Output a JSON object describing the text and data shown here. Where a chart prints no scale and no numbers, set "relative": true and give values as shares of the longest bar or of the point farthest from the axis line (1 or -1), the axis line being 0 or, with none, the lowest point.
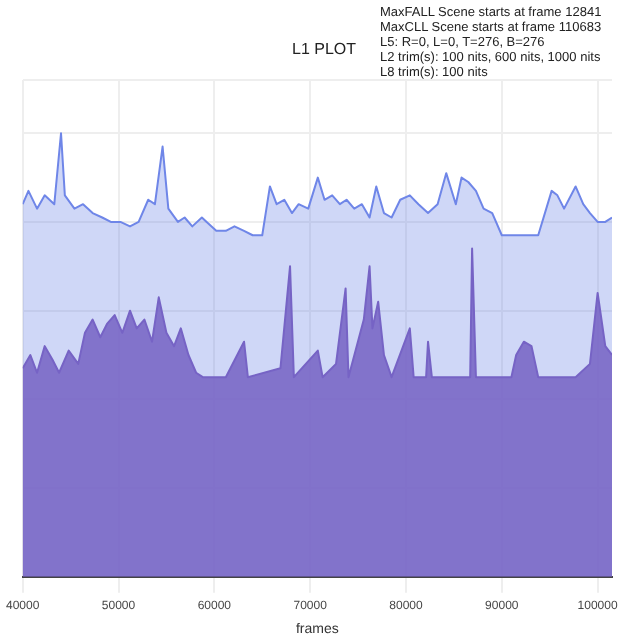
{
  "chart_data": {
    "type": "area",
    "title": "L1 PLOT",
    "xlabel": "frames",
    "relative": true,
    "grid": true,
    "legend": false,
    "marker": "none",
    "annotations": [
      "MaxFALL Scene starts at frame 12841",
      "MaxCLL Scene starts at frame 110683",
      "L5: R=0, L=0, T=276, B=276",
      "L2 trim(s): 100 nits, 600 nits, 1000 nits",
      "L8 trim(s): 100 nits"
    ],
    "xlim": [
      40000,
      101500
    ],
    "xticks": [
      40000,
      50000,
      60000,
      70000,
      80000,
      90000,
      100000
    ],
    "series": [
      {
        "color": "#6f86e8",
        "x": [
          40000,
          40600,
          41500,
          42300,
          43300,
          44000,
          44400,
          45400,
          46300,
          47300,
          48300,
          49200,
          50200,
          51200,
          52100,
          53100,
          53800,
          54600,
          55200,
          56200,
          56900,
          57700,
          58700,
          59200,
          60200,
          61200,
          62100,
          63100,
          64000,
          65000,
          65800,
          66500,
          67300,
          68100,
          68800,
          69800,
          70800,
          71500,
          72300,
          73100,
          73800,
          74600,
          75400,
          76200,
          76900,
          77700,
          78500,
          79400,
          80400,
          81300,
          82300,
          83300,
          84200,
          85200,
          85800,
          86500,
          87300,
          88100,
          89000,
          90000,
          91000,
          91900,
          92900,
          93800,
          95200,
          95800,
          96500,
          97700,
          98500,
          99200,
          100000,
          100800,
          101500
        ],
        "values": [
          0.84,
          0.87,
          0.83,
          0.86,
          0.84,
          1.0,
          0.86,
          0.83,
          0.84,
          0.82,
          0.81,
          0.8,
          0.8,
          0.79,
          0.8,
          0.85,
          0.84,
          0.97,
          0.83,
          0.8,
          0.81,
          0.79,
          0.81,
          0.8,
          0.78,
          0.78,
          0.79,
          0.78,
          0.77,
          0.77,
          0.88,
          0.84,
          0.85,
          0.82,
          0.84,
          0.83,
          0.9,
          0.85,
          0.86,
          0.84,
          0.85,
          0.83,
          0.84,
          0.81,
          0.88,
          0.82,
          0.81,
          0.85,
          0.86,
          0.84,
          0.82,
          0.84,
          0.91,
          0.84,
          0.9,
          0.89,
          0.87,
          0.83,
          0.82,
          0.77,
          0.77,
          0.77,
          0.77,
          0.77,
          0.87,
          0.86,
          0.83,
          0.88,
          0.84,
          0.82,
          0.8,
          0.8,
          0.81
        ]
      },
      {
        "color": "#7a52b4",
        "x": [
          40000,
          40800,
          41500,
          42300,
          43100,
          43800,
          44800,
          45800,
          46500,
          47300,
          48100,
          48800,
          49600,
          50400,
          51200,
          51900,
          52700,
          53500,
          54200,
          55000,
          55800,
          56500,
          57300,
          58100,
          58800,
          61200,
          63100,
          63500,
          66900,
          67900,
          68300,
          70800,
          71300,
          72700,
          73700,
          74000,
          75600,
          76200,
          76500,
          77100,
          77700,
          78500,
          80400,
          80800,
          82100,
          82300,
          82700,
          86700,
          86900,
          87300,
          91000,
          91500,
          92300,
          93100,
          93800,
          95800,
          97700,
          99200,
          100000,
          100800,
          101500
        ],
        "values": [
          0.47,
          0.5,
          0.46,
          0.52,
          0.49,
          0.46,
          0.51,
          0.48,
          0.55,
          0.58,
          0.54,
          0.57,
          0.59,
          0.55,
          0.6,
          0.56,
          0.58,
          0.53,
          0.63,
          0.55,
          0.52,
          0.56,
          0.5,
          0.46,
          0.45,
          0.45,
          0.53,
          0.45,
          0.47,
          0.7,
          0.45,
          0.51,
          0.45,
          0.48,
          0.65,
          0.45,
          0.58,
          0.7,
          0.56,
          0.62,
          0.5,
          0.45,
          0.56,
          0.45,
          0.45,
          0.53,
          0.45,
          0.45,
          0.74,
          0.45,
          0.45,
          0.5,
          0.53,
          0.52,
          0.45,
          0.45,
          0.45,
          0.48,
          0.64,
          0.52,
          0.5
        ]
      }
    ]
  }
}
